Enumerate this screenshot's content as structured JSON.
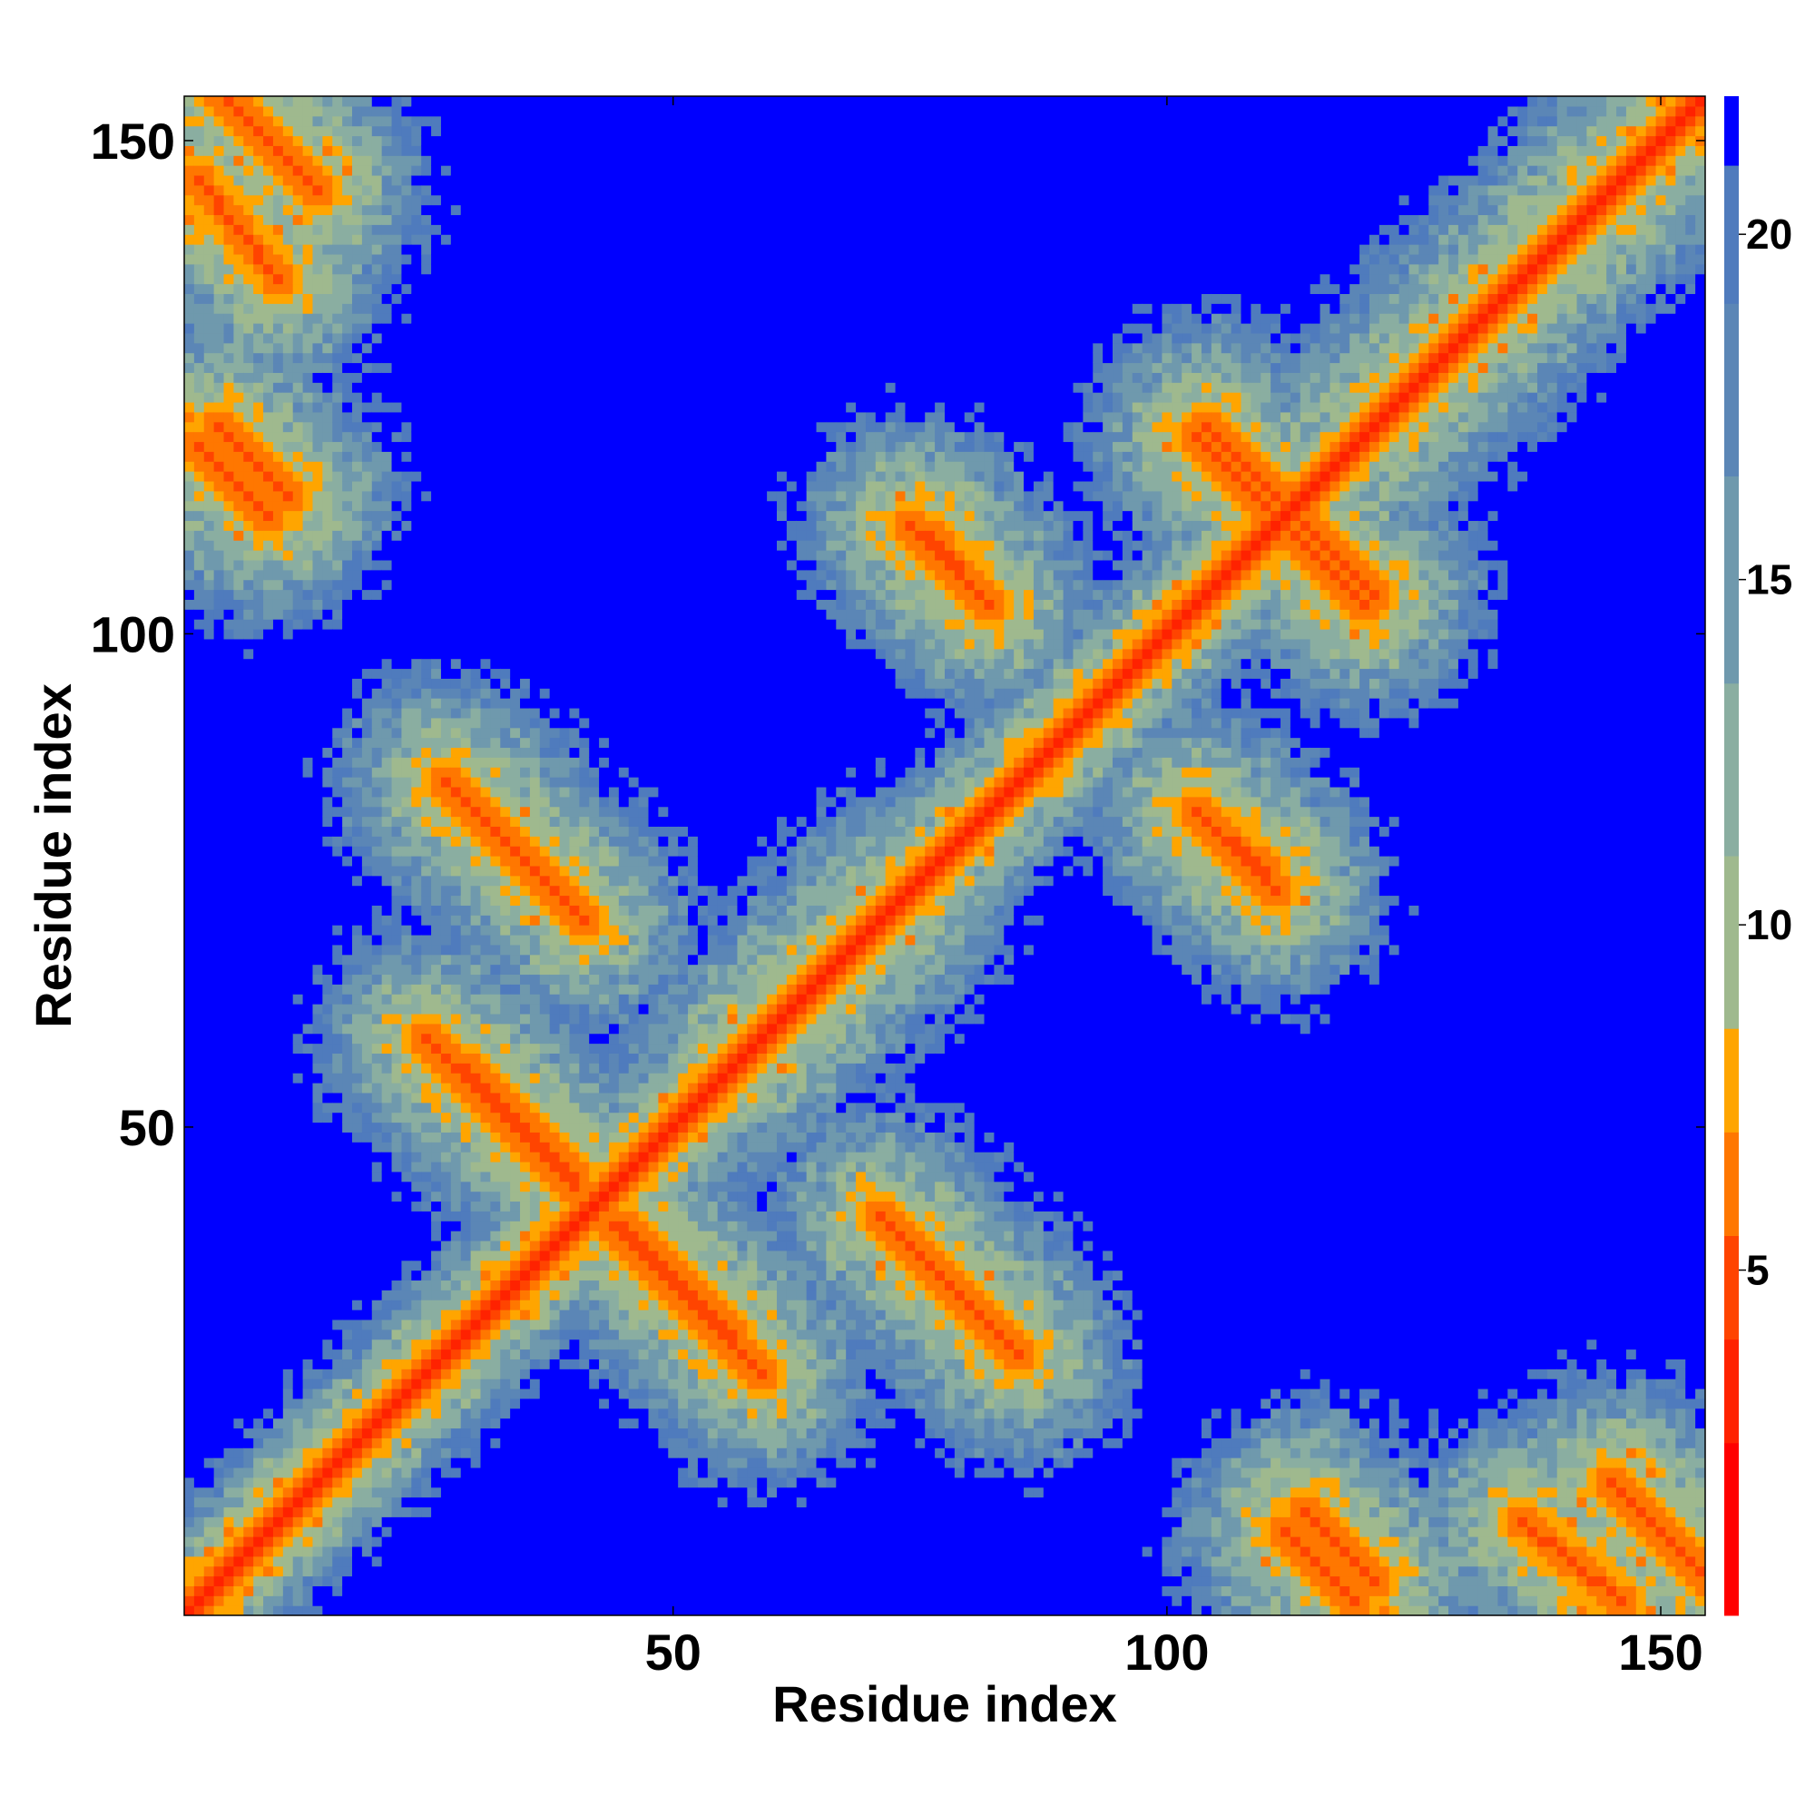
{
  "chart_data": {
    "type": "heatmap",
    "title": "",
    "xlabel": "Residue index",
    "ylabel": "Residue index",
    "xlim": [
      1,
      154
    ],
    "ylim": [
      1,
      154
    ],
    "xticks": [
      50,
      100,
      150
    ],
    "yticks": [
      50,
      100,
      150
    ],
    "colorbar": {
      "ticks": [
        5,
        10,
        15,
        20
      ],
      "range": [
        0,
        22
      ],
      "levels": [
        {
          "max": 2.5,
          "color": "#ff0000"
        },
        {
          "max": 4,
          "color": "#ff2200"
        },
        {
          "max": 5.5,
          "color": "#ff4400"
        },
        {
          "max": 7,
          "color": "#ff7700"
        },
        {
          "max": 8.5,
          "color": "#ffa500"
        },
        {
          "max": 11,
          "color": "#9fb98e"
        },
        {
          "max": 13.5,
          "color": "#8aaea1"
        },
        {
          "max": 16.5,
          "color": "#6f99ad"
        },
        {
          "max": 19,
          "color": "#5b86b6"
        },
        {
          "max": 21,
          "color": "#4f7bbd"
        },
        {
          "max": 1000,
          "color": "#0000ff"
        }
      ]
    },
    "matrix_description": "Symmetric residue-residue distance map (Å); red diagonal, orange contact stripes, blue beyond 21",
    "contacts": [
      {
        "i": [
          1,
          13
        ],
        "j": [
          144,
          156
        ],
        "kind": "anti"
      },
      {
        "i": [
          3,
          10
        ],
        "j": [
          113,
          120
        ],
        "kind": "anti"
      },
      {
        "i": [
          27,
          40
        ],
        "j": [
          70,
          83
        ],
        "kind": "anti"
      },
      {
        "i": [
          24,
          33
        ],
        "j": [
          49,
          58
        ],
        "kind": "anti"
      },
      {
        "i": [
          32,
          39
        ],
        "j": [
          43,
          50
        ],
        "kind": "anti"
      },
      {
        "i": [
          44,
          55
        ],
        "j": [
          28,
          39
        ],
        "kind": "anti"
      },
      {
        "i": [
          73,
          84
        ],
        "j": [
          26,
          37
        ],
        "kind": "anti"
      },
      {
        "i": [
          75,
          81
        ],
        "j": [
          102,
          109
        ],
        "kind": "anti"
      },
      {
        "i": [
          102,
          110
        ],
        "j": [
          73,
          81
        ],
        "kind": "anti"
      },
      {
        "i": [
          102,
          109
        ],
        "j": [
          112,
          119
        ],
        "kind": "anti"
      },
      {
        "i": [
          112,
          120
        ],
        "j": [
          103,
          111
        ],
        "kind": "anti"
      },
      {
        "i": [
          111,
          118
        ],
        "j": [
          1,
          8
        ],
        "kind": "anti"
      },
      {
        "i": [
          135,
          145
        ],
        "j": [
          1,
          9
        ],
        "kind": "anti"
      },
      {
        "i": [
          56,
          72
        ],
        "j": [
          56,
          72
        ],
        "kind": "band"
      },
      {
        "i": [
          119,
          146
        ],
        "j": [
          119,
          146
        ],
        "kind": "band"
      }
    ]
  }
}
